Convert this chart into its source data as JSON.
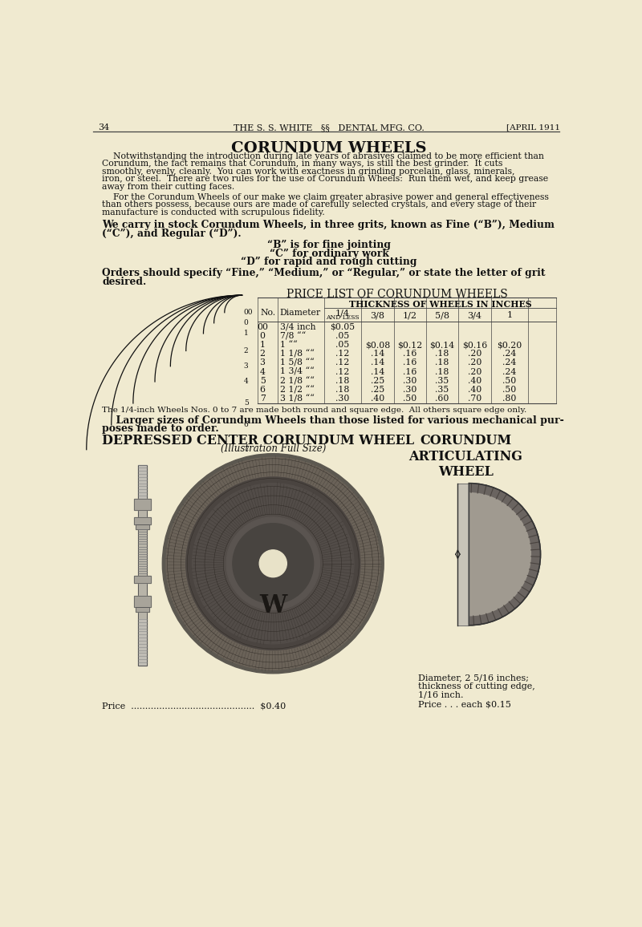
{
  "page_color": "#f0ead0",
  "table_rows": [
    [
      "00",
      "3/4 inch",
      "$0.05",
      "",
      "",
      "",
      "",
      ""
    ],
    [
      "0",
      "7/8 \"\"",
      ".05",
      "",
      "",
      "",
      "",
      ""
    ],
    [
      "1",
      "1 \"\"",
      ".05",
      "$0.08",
      "$0.12",
      "$0.14",
      "$0.16",
      "$0.20"
    ],
    [
      "2",
      "1 1/8 \"\"",
      ".12",
      ".14",
      ".16",
      ".18",
      ".20",
      ".24"
    ],
    [
      "3",
      "1 5/8 \"\"",
      ".12",
      ".14",
      ".16",
      ".18",
      ".20",
      ".24"
    ],
    [
      "4",
      "1 3/4 \"\"",
      ".12",
      ".14",
      ".16",
      ".18",
      ".20",
      ".24"
    ],
    [
      "5",
      "2 1/8 \"\"",
      ".18",
      ".25",
      ".30",
      ".35",
      ".40",
      ".50"
    ],
    [
      "6",
      "2 1/2 \"\"",
      ".18",
      ".25",
      ".30",
      ".35",
      ".40",
      ".50"
    ],
    [
      "7",
      "3 1/8 \"\"",
      ".30",
      ".40",
      ".50",
      ".60",
      ".70",
      ".80"
    ]
  ]
}
